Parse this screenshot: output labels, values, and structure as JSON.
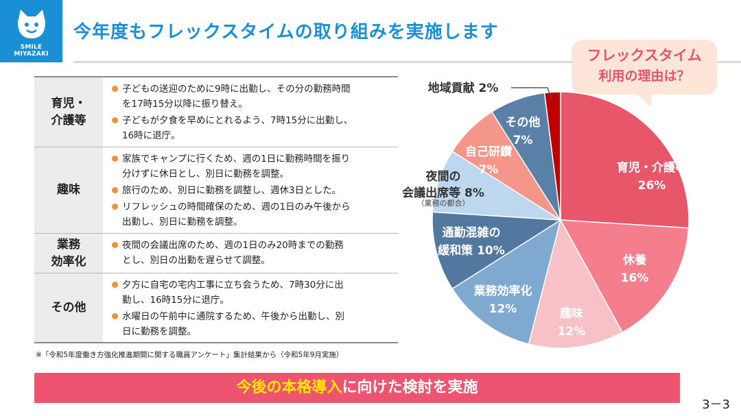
{
  "logo": {
    "line1": "SMILE",
    "line2": "MIYAZAKI"
  },
  "title": "今年度もフレックスタイムの取り組みを実施します",
  "callout": {
    "line1": "フレックスタイム",
    "line2": "利用の理由は？"
  },
  "table": [
    {
      "category": "育児・\n介護等",
      "items": [
        "子どもの送迎のために9時に出勤し、その分の勤務時間\nを17時15分以降に振り替え。",
        "子どもが夕食を早めにとれるよう、7時15分に出勤し、\n16時に退庁。"
      ]
    },
    {
      "category": "趣味",
      "items": [
        "家族でキャンプに行くため、週の1日に勤務時間を振り\n分けずに休日とし、別日に勤務を調整。",
        "旅行のため、別日に勤務を調整し、週休3日とした。",
        "リフレッシュの時間確保のため、週の1日のみ午後から\n出勤し、別日に勤務を調整。"
      ]
    },
    {
      "category": "業務\n効率化",
      "items": [
        "夜間の会議出席のため、週の1日のみ20時までの勤務\nとし、別日の出勤を遅らせて調整。"
      ]
    },
    {
      "category": "その他",
      "items": [
        "夕方に自宅の宅内工事に立ち会うため、7時30分に出\n勤し、16時15分に退庁。",
        "水曜日の午前中に通院するため、午後から出勤し、別\n日に勤務を調整。"
      ]
    }
  ],
  "footnote": "※「令和5年度働き方強化推進期間に関する職員アンケート」集計結果から（令和5年9月実施）",
  "banner": {
    "emphasis": "今後の本格導入",
    "rest": "に向けた検討を実施"
  },
  "page_number": "3－3",
  "chart_data": {
    "type": "pie",
    "title": "",
    "unit": "%",
    "series": [
      {
        "name": "育児・介護等",
        "label_lines": [
          "育児・介護等",
          "26%"
        ],
        "value": 26,
        "color": "#e8566a"
      },
      {
        "name": "休養",
        "label_lines": [
          "休養",
          "16%"
        ],
        "value": 16,
        "color": "#f47e8c"
      },
      {
        "name": "趣味",
        "label_lines": [
          "趣味",
          "12%"
        ],
        "value": 12,
        "color": "#f7c1c7"
      },
      {
        "name": "業務効率化",
        "label_lines": [
          "業務効率化",
          "12%"
        ],
        "value": 12,
        "color": "#7fa9d0"
      },
      {
        "name": "通勤混雑の緩和策",
        "label_lines": [
          "通勤混雑の",
          "緩和策 10%"
        ],
        "value": 10,
        "color": "#52789f"
      },
      {
        "name": "夜間の会議出席等",
        "label_lines": [
          "夜間の",
          "会議出席等 8%"
        ],
        "sublabel": "（業務の都合）",
        "value": 8,
        "color": "#bdd7ee"
      },
      {
        "name": "自己研鑽",
        "label_lines": [
          "自己研鑽",
          "7%"
        ],
        "value": 7,
        "color": "#f4978a"
      },
      {
        "name": "その他",
        "label_lines": [
          "その他",
          "7%"
        ],
        "value": 7,
        "color": "#5a80a8"
      },
      {
        "name": "地域貢献",
        "label_lines": [
          "地域貢献 2%"
        ],
        "value": 2,
        "color": "#c00000"
      }
    ]
  }
}
